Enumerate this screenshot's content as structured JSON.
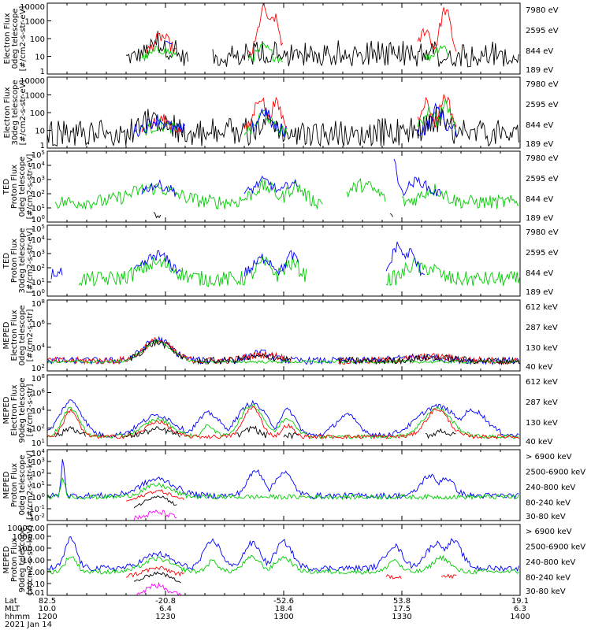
{
  "chart_data": {
    "type": "line",
    "time_axis": {
      "range_hhmm": [
        "1200",
        "1400"
      ],
      "ticks": [
        {
          "label": "1200",
          "lat": "82.5",
          "mlt": "10.0"
        },
        {
          "label": "1230",
          "lat": "-20.8",
          "mlt": "6.4"
        },
        {
          "label": "1300",
          "lat": "-52.6",
          "mlt": "18.4"
        },
        {
          "label": "1330",
          "lat": "53.8",
          "mlt": "17.5"
        },
        {
          "label": "1400",
          "lat": "19.1",
          "mlt": "6.3"
        }
      ],
      "row_labels": [
        "Lat",
        "MLT",
        "hhmm"
      ],
      "date": "2021 Jan 14"
    },
    "panels": [
      {
        "ylabel": [
          "Electron Flux",
          "0deg telescope",
          "[#/cm2-s-str-eV]"
        ],
        "ytick_labels": [
          "10000",
          "1000",
          "100",
          "10",
          "1"
        ],
        "ylim_log": [
          0,
          4
        ],
        "legend": [
          {
            "label": "7980 eV",
            "color": "#000000"
          },
          {
            "label": "2595 eV",
            "color": "#ff0000"
          },
          {
            "label": "844 eV",
            "color": "#00cc00"
          },
          {
            "label": "189 eV",
            "color": "#0000ff"
          }
        ]
      },
      {
        "ylabel": [
          "Electron Flux",
          "30deg telescope",
          "[#/cm2-s-str-eV]"
        ],
        "ytick_labels": [
          "10000",
          "1000",
          "100",
          "10",
          "1"
        ],
        "ylim_log": [
          0,
          4
        ],
        "legend": [
          {
            "label": "7980 eV",
            "color": "#000000"
          },
          {
            "label": "2595 eV",
            "color": "#ff0000"
          },
          {
            "label": "844 eV",
            "color": "#00cc00"
          },
          {
            "label": "189 eV",
            "color": "#0000ff"
          }
        ]
      },
      {
        "ylabel": [
          "TED",
          "Proton Flux",
          "0deg telescope",
          "[#/cm2-s-str-eV]"
        ],
        "ytick_labels": [
          "10^5",
          "10^4",
          "10^3",
          "10^2",
          "10^1",
          "10^0"
        ],
        "ylim_log": [
          0,
          5
        ],
        "legend": [
          {
            "label": "7980 eV",
            "color": "#000000"
          },
          {
            "label": "2595 eV",
            "color": "#ff0000"
          },
          {
            "label": "844 eV",
            "color": "#00cc00"
          },
          {
            "label": "189 eV",
            "color": "#0000ff"
          }
        ]
      },
      {
        "ylabel": [
          "TED",
          "Proton Flux",
          "30deg telescope",
          "[#/cm2-s-str-eV]"
        ],
        "ytick_labels": [
          "10^5",
          "10^4",
          "10^3",
          "10^2",
          "10^1",
          "10^0"
        ],
        "ylim_log": [
          0,
          5
        ],
        "legend": [
          {
            "label": "7980 eV",
            "color": "#000000"
          },
          {
            "label": "2595 eV",
            "color": "#ff0000"
          },
          {
            "label": "844 eV",
            "color": "#00cc00"
          },
          {
            "label": "189 eV",
            "color": "#0000ff"
          }
        ]
      },
      {
        "ylabel": [
          "MEPED",
          "Electron Flux",
          "0deg telescope",
          "[#/cm2-s-str]"
        ],
        "ytick_labels": [
          "10^8",
          "10^6",
          "10^4",
          "10^2"
        ],
        "ylim_log": [
          1,
          8
        ],
        "legend": [
          {
            "label": "612 keV",
            "color": "#000000"
          },
          {
            "label": "287 keV",
            "color": "#ff0000"
          },
          {
            "label": "130 keV",
            "color": "#00cc00"
          },
          {
            "label": "40 keV",
            "color": "#0000ff"
          }
        ]
      },
      {
        "ylabel": [
          "MEPED",
          "Electron Flux",
          "90deg telescope",
          "[#/cm2-s-str]"
        ],
        "ytick_labels": [
          "10^8",
          "10^6",
          "10^4",
          "10^2",
          "10^1"
        ],
        "ylim_log": [
          1,
          8
        ],
        "legend": [
          {
            "label": "612 keV",
            "color": "#000000"
          },
          {
            "label": "287 keV",
            "color": "#ff0000"
          },
          {
            "label": "130 keV",
            "color": "#00cc00"
          },
          {
            "label": "40 keV",
            "color": "#0000ff"
          }
        ]
      },
      {
        "ylabel": [
          "MEPED",
          "Proton Flux",
          "0deg telescope",
          "[#/cm2-s-str-keV]"
        ],
        "ytick_labels": [
          "10^4",
          "10^3",
          "10^2",
          "10^1",
          "10^0",
          "10^-1",
          "10^-2"
        ],
        "ylim_log": [
          -2,
          4
        ],
        "legend": [
          {
            "label": "> 6900 keV",
            "color": "#ff00ff"
          },
          {
            "label": "2500-6900 keV",
            "color": "#000000"
          },
          {
            "label": "240-800 keV",
            "color": "#ff0000"
          },
          {
            "label": "80-240 keV",
            "color": "#00cc00"
          },
          {
            "label": "30-80 keV",
            "color": "#0000ff"
          }
        ]
      },
      {
        "ylabel": [
          "MEPED",
          "Proton Flux",
          "90deg telescope",
          "[#/cm2-s-str-keV]"
        ],
        "ytick_labels": [
          "10000.00",
          "1000.00",
          "100.00",
          "10.00",
          "1.00",
          "0.10",
          "0.01"
        ],
        "ylim_log": [
          -2,
          4
        ],
        "legend": [
          {
            "label": "> 6900 keV",
            "color": "#ff00ff"
          },
          {
            "label": "2500-6900 keV",
            "color": "#000000"
          },
          {
            "label": "240-800 keV",
            "color": "#ff0000"
          },
          {
            "label": "80-240 keV",
            "color": "#00cc00"
          },
          {
            "label": "30-80 keV",
            "color": "#0000ff"
          }
        ]
      }
    ]
  }
}
